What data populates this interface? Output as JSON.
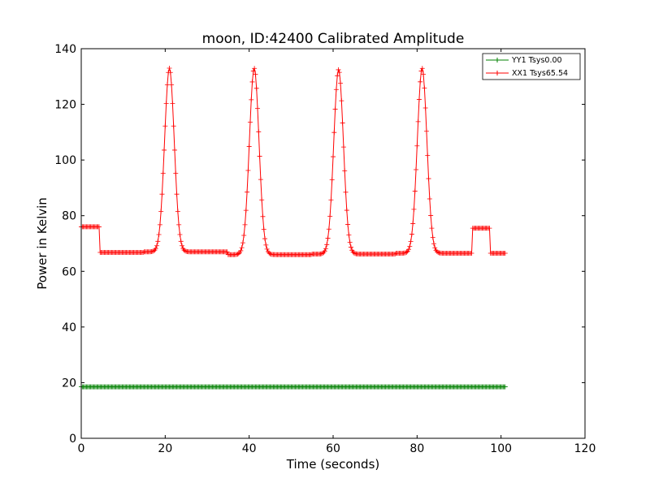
{
  "chart_data": {
    "type": "line",
    "title": "moon, ID:42400 Calibrated Amplitude",
    "xlabel": "Time (seconds)",
    "ylabel": "Power in Kelvin",
    "xlim": [
      0,
      120
    ],
    "ylim": [
      0,
      140
    ],
    "xticks": [
      0,
      20,
      40,
      60,
      80,
      100,
      120
    ],
    "yticks": [
      0,
      20,
      40,
      60,
      80,
      100,
      120,
      140
    ],
    "grid": false,
    "legend_position": "top-right",
    "series": [
      {
        "name": "YY1 Tsys0.00",
        "color": "#008000",
        "marker": "+",
        "sample_step": 0.25,
        "x_range": [
          0,
          101
        ],
        "baseline": 18.5
      },
      {
        "name": "XX1 Tsys65.54",
        "color": "#ff0000",
        "marker": "+",
        "sample_step": 0.25,
        "x_range": [
          0,
          101
        ],
        "plateaus": [
          {
            "from": 0,
            "to": 4.3,
            "value": 76
          },
          {
            "from": 4.3,
            "to": 15,
            "value": 66.8
          },
          {
            "from": 15,
            "to": 35,
            "value": 67
          },
          {
            "from": 35,
            "to": 55,
            "value": 66
          },
          {
            "from": 55,
            "to": 75,
            "value": 66.2
          },
          {
            "from": 75,
            "to": 93.2,
            "value": 66.5
          },
          {
            "from": 93.2,
            "to": 97.3,
            "value": 75.5
          },
          {
            "from": 97.3,
            "to": 101,
            "value": 66.5
          }
        ],
        "peaks": [
          {
            "center": 21,
            "height": 133
          },
          {
            "center": 41.2,
            "height": 133
          },
          {
            "center": 61.3,
            "height": 132.5
          },
          {
            "center": 81.2,
            "height": 133
          }
        ],
        "peak_width": 1.15
      }
    ]
  }
}
